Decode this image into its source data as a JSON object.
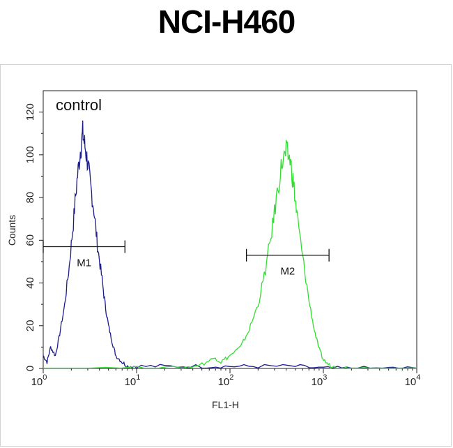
{
  "chart_data": {
    "type": "line",
    "title": "NCI-H460",
    "xlabel": "FL1-H",
    "ylabel": "Counts",
    "x_scale": "log",
    "xlim": [
      1,
      10000
    ],
    "ylim": [
      0,
      130
    ],
    "x_ticks": [
      {
        "value": 1,
        "base": "10",
        "exp": "0"
      },
      {
        "value": 10,
        "base": "10",
        "exp": "1"
      },
      {
        "value": 100,
        "base": "10",
        "exp": "2"
      },
      {
        "value": 1000,
        "base": "10",
        "exp": "3"
      },
      {
        "value": 10000,
        "base": "10",
        "exp": "4"
      }
    ],
    "y_ticks": [
      "0",
      "20",
      "40",
      "60",
      "80",
      "100",
      "120"
    ],
    "annotation": "control",
    "series": [
      {
        "color": "#1c1c8c",
        "x": [
          1.0,
          1.1,
          1.2,
          1.35,
          1.5,
          1.7,
          1.9,
          2.1,
          2.3,
          2.5,
          2.65,
          2.8,
          3.0,
          3.2,
          3.5,
          3.8,
          4.2,
          4.6,
          5.0,
          5.5,
          6.0,
          7.0,
          8.0,
          10,
          20,
          50,
          100,
          200,
          500,
          1000,
          2000,
          5000,
          10000
        ],
        "y": [
          6,
          3,
          10,
          6,
          16,
          30,
          48,
          68,
          88,
          102,
          110,
          104,
          96,
          86,
          74,
          58,
          44,
          30,
          20,
          12,
          6,
          3,
          1,
          1,
          1,
          1,
          1,
          1,
          1,
          0,
          0,
          0,
          0
        ]
      },
      {
        "color": "#33dd33",
        "x": [
          1,
          10,
          30,
          50,
          70,
          80,
          100,
          130,
          160,
          200,
          240,
          280,
          320,
          360,
          400,
          440,
          480,
          520,
          600,
          700,
          800,
          900,
          1000,
          1200,
          1500,
          2000,
          5000,
          10000
        ],
        "y": [
          0,
          0,
          0,
          2,
          5,
          3,
          6,
          10,
          18,
          30,
          46,
          64,
          82,
          96,
          101,
          98,
          86,
          72,
          52,
          32,
          18,
          9,
          4,
          1,
          0,
          0,
          0,
          0
        ]
      }
    ],
    "markers": [
      {
        "label": "M1",
        "x_start": 1.0,
        "x_end": 7.5,
        "y": 57
      },
      {
        "label": "M2",
        "x_start": 150,
        "x_end": 1150,
        "y": 53
      }
    ]
  }
}
